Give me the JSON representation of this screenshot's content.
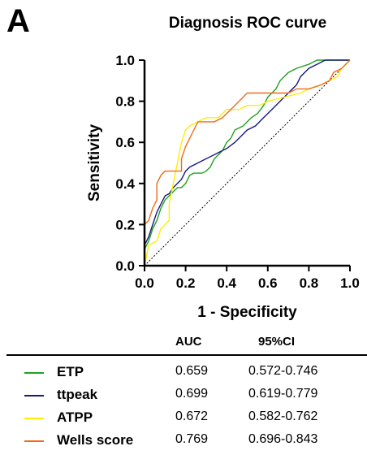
{
  "panel_label": "A",
  "chart_data": {
    "type": "line",
    "title": "Diagnosis ROC curve",
    "xlabel": "1 - Specificity",
    "ylabel": "Sensitivity",
    "xlim": [
      0,
      1
    ],
    "ylim": [
      0,
      1
    ],
    "x_ticks": [
      "0.0",
      "0.2",
      "0.4",
      "0.6",
      "0.8",
      "1.0"
    ],
    "y_ticks": [
      "0.0",
      "0.2",
      "0.4",
      "0.6",
      "0.8",
      "1.0"
    ],
    "reference_line": true,
    "series": [
      {
        "name": "ETP",
        "color": "#22a022",
        "points": [
          [
            0,
            0
          ],
          [
            0,
            0.08
          ],
          [
            0.02,
            0.12
          ],
          [
            0.04,
            0.18
          ],
          [
            0.06,
            0.22
          ],
          [
            0.08,
            0.28
          ],
          [
            0.1,
            0.32
          ],
          [
            0.12,
            0.34
          ],
          [
            0.14,
            0.36
          ],
          [
            0.16,
            0.38
          ],
          [
            0.18,
            0.38
          ],
          [
            0.2,
            0.4
          ],
          [
            0.22,
            0.44
          ],
          [
            0.24,
            0.45
          ],
          [
            0.28,
            0.45
          ],
          [
            0.3,
            0.46
          ],
          [
            0.32,
            0.48
          ],
          [
            0.34,
            0.52
          ],
          [
            0.36,
            0.54
          ],
          [
            0.38,
            0.56
          ],
          [
            0.4,
            0.6
          ],
          [
            0.42,
            0.62
          ],
          [
            0.44,
            0.66
          ],
          [
            0.48,
            0.68
          ],
          [
            0.5,
            0.7
          ],
          [
            0.52,
            0.72
          ],
          [
            0.55,
            0.74
          ],
          [
            0.58,
            0.78
          ],
          [
            0.6,
            0.82
          ],
          [
            0.64,
            0.86
          ],
          [
            0.66,
            0.9
          ],
          [
            0.7,
            0.94
          ],
          [
            0.74,
            0.96
          ],
          [
            0.8,
            0.98
          ],
          [
            0.84,
            1.0
          ],
          [
            1,
            1
          ]
        ]
      },
      {
        "name": "ttpeak",
        "color": "#1a1a7a",
        "points": [
          [
            0,
            0
          ],
          [
            0,
            0.1
          ],
          [
            0.02,
            0.14
          ],
          [
            0.04,
            0.2
          ],
          [
            0.06,
            0.26
          ],
          [
            0.08,
            0.3
          ],
          [
            0.1,
            0.34
          ],
          [
            0.12,
            0.35
          ],
          [
            0.14,
            0.38
          ],
          [
            0.16,
            0.4
          ],
          [
            0.18,
            0.42
          ],
          [
            0.2,
            0.46
          ],
          [
            0.22,
            0.48
          ],
          [
            0.26,
            0.5
          ],
          [
            0.3,
            0.52
          ],
          [
            0.34,
            0.54
          ],
          [
            0.38,
            0.56
          ],
          [
            0.4,
            0.57
          ],
          [
            0.44,
            0.6
          ],
          [
            0.48,
            0.64
          ],
          [
            0.5,
            0.66
          ],
          [
            0.54,
            0.68
          ],
          [
            0.58,
            0.72
          ],
          [
            0.62,
            0.76
          ],
          [
            0.66,
            0.8
          ],
          [
            0.7,
            0.84
          ],
          [
            0.74,
            0.88
          ],
          [
            0.76,
            0.92
          ],
          [
            0.78,
            0.94
          ],
          [
            0.8,
            0.96
          ],
          [
            0.84,
            0.98
          ],
          [
            0.88,
            1.0
          ],
          [
            1,
            1
          ]
        ]
      },
      {
        "name": "ATPP",
        "color": "#ffee00",
        "points": [
          [
            0,
            0
          ],
          [
            0.02,
            0.1
          ],
          [
            0.06,
            0.12
          ],
          [
            0.08,
            0.18
          ],
          [
            0.12,
            0.22
          ],
          [
            0.12,
            0.3
          ],
          [
            0.14,
            0.4
          ],
          [
            0.16,
            0.5
          ],
          [
            0.18,
            0.6
          ],
          [
            0.2,
            0.66
          ],
          [
            0.22,
            0.68
          ],
          [
            0.26,
            0.7
          ],
          [
            0.3,
            0.72
          ],
          [
            0.36,
            0.72
          ],
          [
            0.38,
            0.74
          ],
          [
            0.4,
            0.76
          ],
          [
            0.46,
            0.76
          ],
          [
            0.5,
            0.78
          ],
          [
            0.56,
            0.78
          ],
          [
            0.6,
            0.8
          ],
          [
            0.68,
            0.82
          ],
          [
            0.76,
            0.84
          ],
          [
            0.8,
            0.86
          ],
          [
            0.86,
            0.88
          ],
          [
            0.9,
            0.9
          ],
          [
            0.94,
            0.92
          ],
          [
            0.96,
            0.96
          ],
          [
            1,
            1
          ]
        ]
      },
      {
        "name": "Wells score",
        "color": "#f06a1e",
        "points": [
          [
            0,
            0
          ],
          [
            0,
            0.2
          ],
          [
            0.02,
            0.22
          ],
          [
            0.04,
            0.28
          ],
          [
            0.06,
            0.32
          ],
          [
            0.06,
            0.4
          ],
          [
            0.08,
            0.44
          ],
          [
            0.1,
            0.46
          ],
          [
            0.18,
            0.46
          ],
          [
            0.18,
            0.52
          ],
          [
            0.2,
            0.58
          ],
          [
            0.22,
            0.62
          ],
          [
            0.24,
            0.66
          ],
          [
            0.26,
            0.7
          ],
          [
            0.34,
            0.7
          ],
          [
            0.38,
            0.72
          ],
          [
            0.42,
            0.76
          ],
          [
            0.46,
            0.8
          ],
          [
            0.5,
            0.84
          ],
          [
            0.6,
            0.84
          ],
          [
            0.7,
            0.84
          ],
          [
            0.74,
            0.86
          ],
          [
            0.8,
            0.86
          ],
          [
            0.86,
            0.88
          ],
          [
            0.9,
            0.9
          ],
          [
            0.92,
            0.94
          ],
          [
            0.96,
            0.96
          ],
          [
            1,
            1
          ]
        ]
      }
    ]
  },
  "table": {
    "headers": {
      "auc": "AUC",
      "ci": "95%CI"
    },
    "rows": [
      {
        "name": "ETP",
        "auc": "0.659",
        "ci": "0.572-0.746",
        "color": "#22a022"
      },
      {
        "name": "ttpeak",
        "auc": "0.699",
        "ci": "0.619-0.779",
        "color": "#1a1a7a"
      },
      {
        "name": "ATPP",
        "auc": "0.672",
        "ci": "0.582-0.762",
        "color": "#ffee00"
      },
      {
        "name": "Wells score",
        "auc": "0.769",
        "ci": "0.696-0.843",
        "color": "#f06a1e"
      }
    ]
  }
}
